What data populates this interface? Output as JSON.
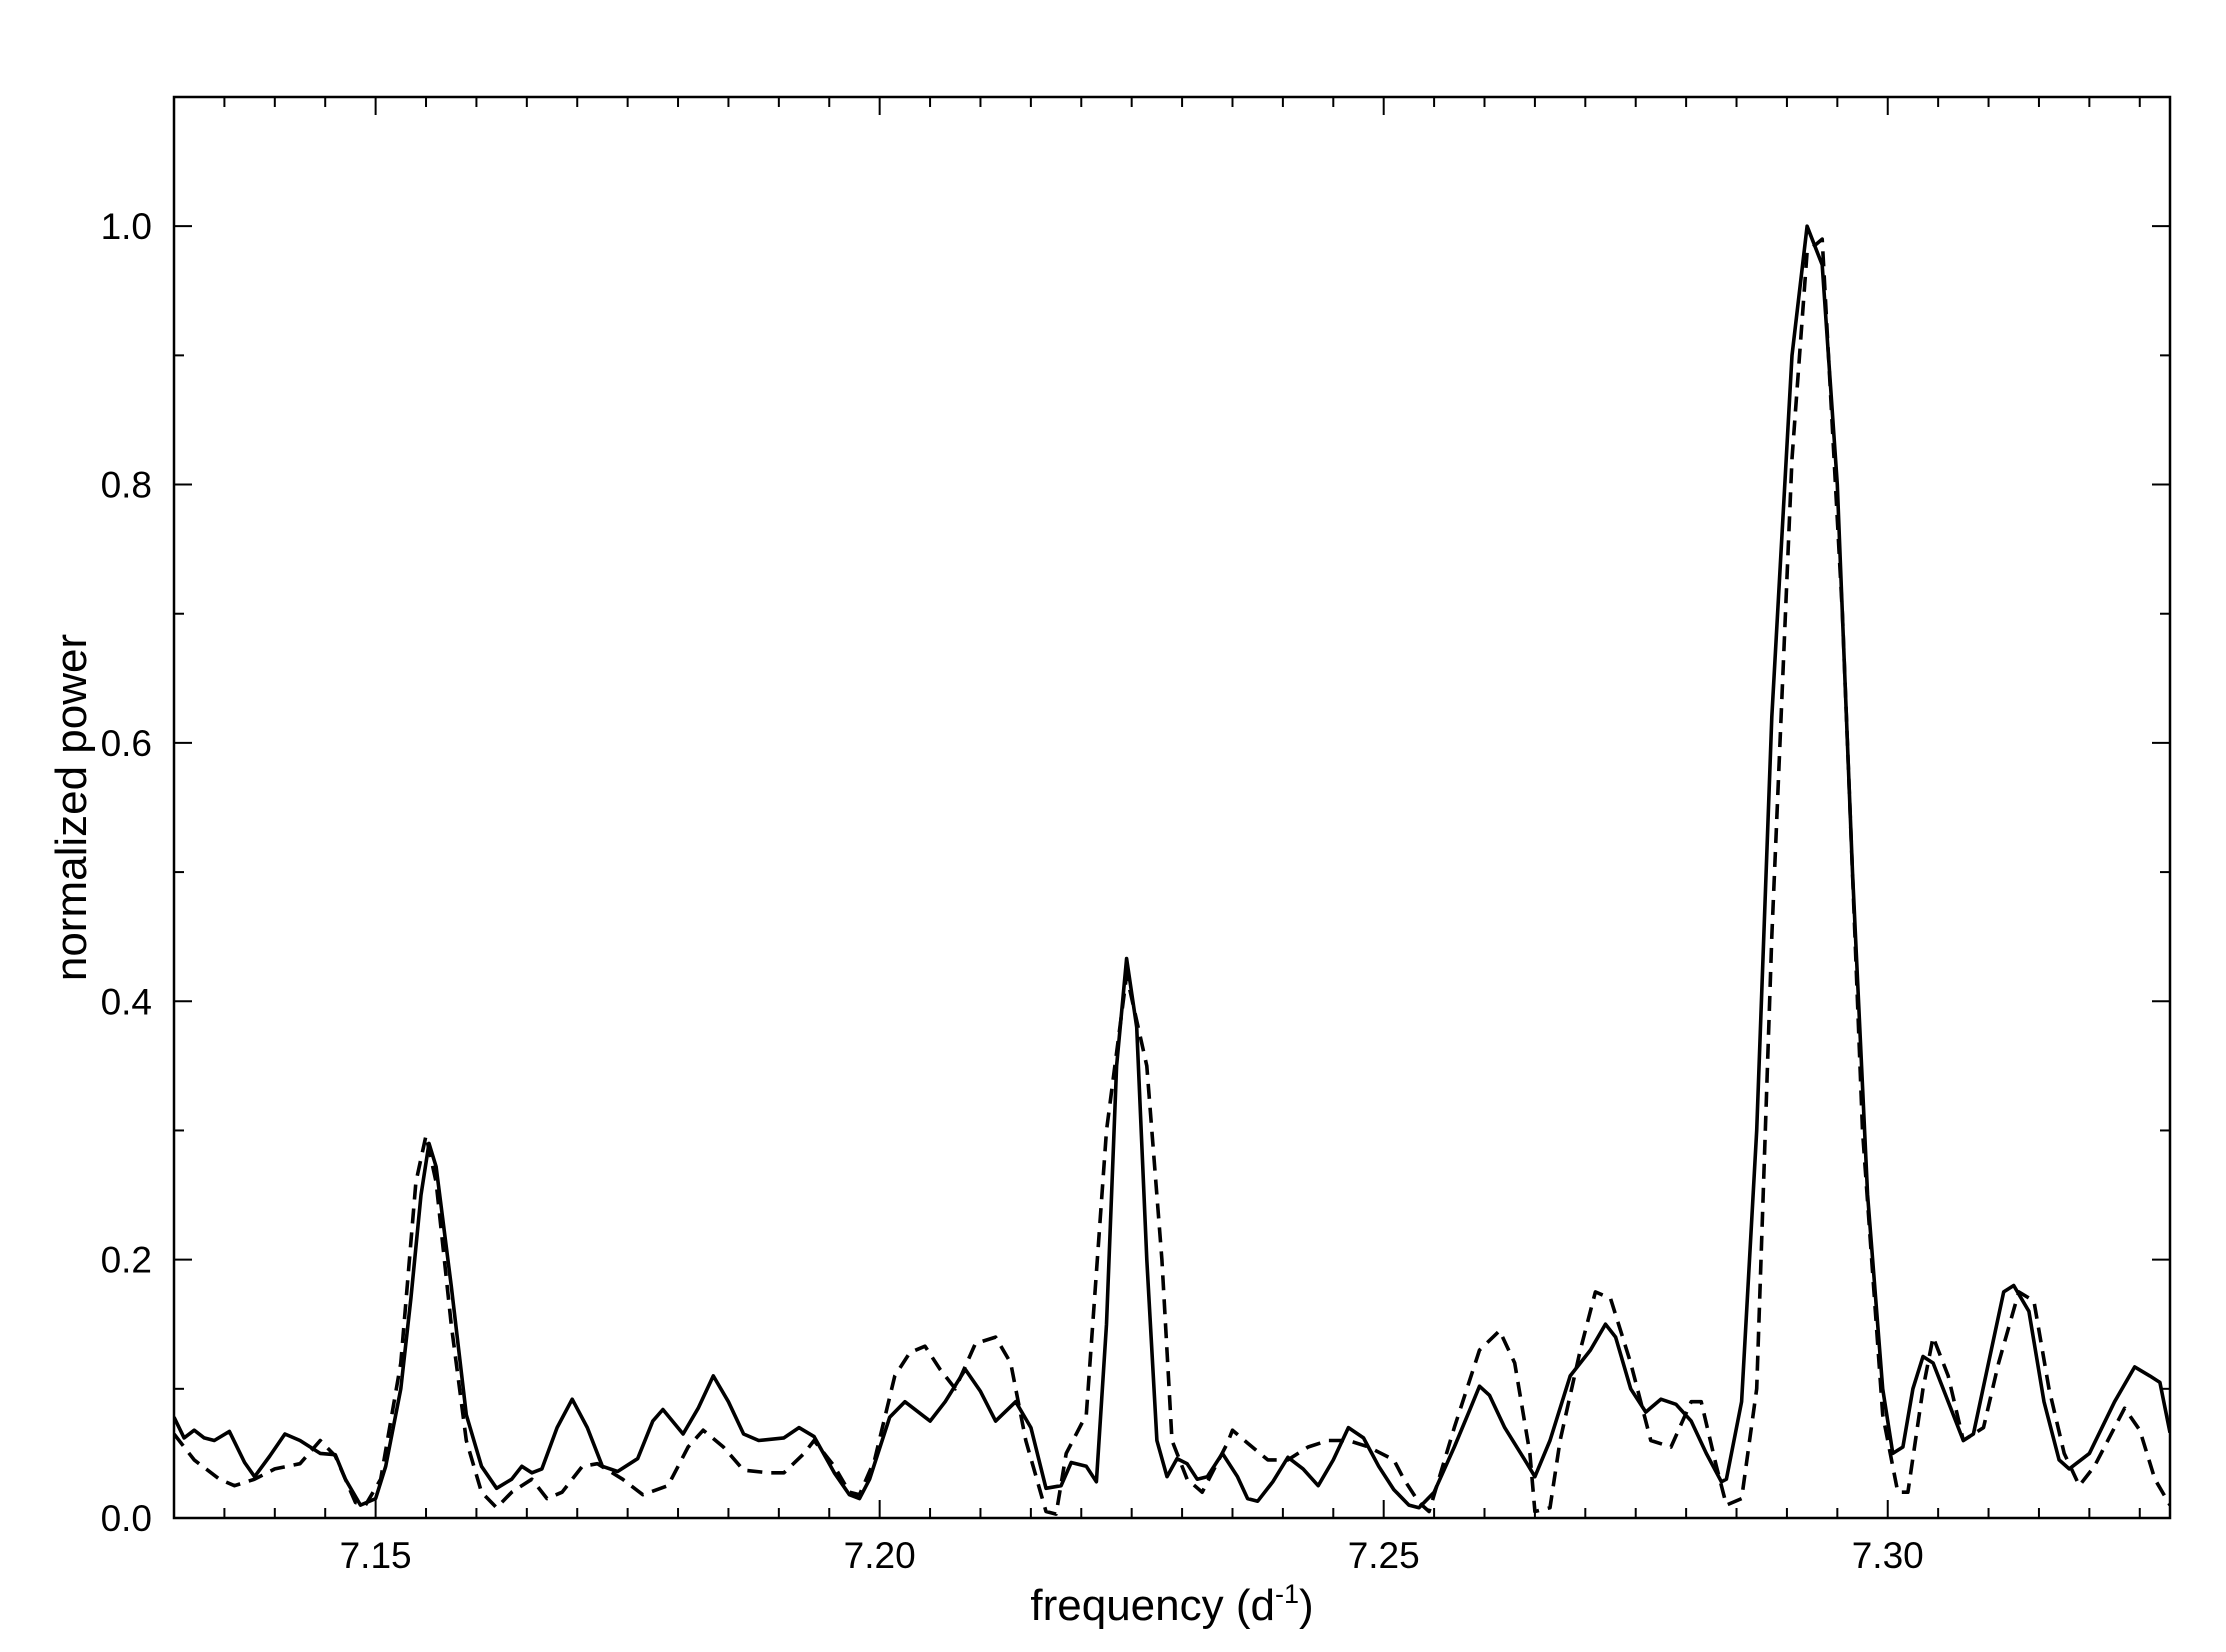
{
  "chart_data": {
    "type": "line",
    "title": "",
    "xlabel": {
      "prefix": "frequency (d",
      "superscript": "-1",
      "suffix": ")"
    },
    "ylabel": "normalized  power",
    "xlim": [
      7.13,
      7.328
    ],
    "ylim": [
      0.0,
      1.1
    ],
    "x_ticks": [
      7.15,
      7.2,
      7.25,
      7.3
    ],
    "x_tick_labels": [
      "7.15",
      "7.20",
      "7.25",
      "7.30"
    ],
    "x_minor_step": 0.005,
    "y_ticks": [
      0.0,
      0.2,
      0.4,
      0.6,
      0.8,
      1.0
    ],
    "y_tick_labels": [
      "0.0",
      "0.2",
      "0.4",
      "0.6",
      "0.8",
      "1.0"
    ],
    "y_minor_step": 0.1,
    "grid": false,
    "legend": "none",
    "series": [
      {
        "style": "solid",
        "color": "#000000",
        "points": [
          [
            7.13,
            0.078
          ],
          [
            7.131,
            0.062
          ],
          [
            7.132,
            0.068
          ],
          [
            7.133,
            0.062
          ],
          [
            7.134,
            0.06
          ],
          [
            7.1355,
            0.067
          ],
          [
            7.137,
            0.043
          ],
          [
            7.138,
            0.032
          ],
          [
            7.1395,
            0.048
          ],
          [
            7.141,
            0.065
          ],
          [
            7.1425,
            0.06
          ],
          [
            7.1445,
            0.05
          ],
          [
            7.146,
            0.049
          ],
          [
            7.147,
            0.03
          ],
          [
            7.1485,
            0.01
          ],
          [
            7.15,
            0.015
          ],
          [
            7.151,
            0.04
          ],
          [
            7.1525,
            0.1
          ],
          [
            7.1535,
            0.17
          ],
          [
            7.1545,
            0.25
          ],
          [
            7.1553,
            0.29
          ],
          [
            7.156,
            0.272
          ],
          [
            7.1575,
            0.18
          ],
          [
            7.159,
            0.08
          ],
          [
            7.1605,
            0.04
          ],
          [
            7.162,
            0.023
          ],
          [
            7.1635,
            0.03
          ],
          [
            7.1645,
            0.04
          ],
          [
            7.1655,
            0.035
          ],
          [
            7.1665,
            0.038
          ],
          [
            7.168,
            0.07
          ],
          [
            7.1695,
            0.092
          ],
          [
            7.171,
            0.07
          ],
          [
            7.1725,
            0.04
          ],
          [
            7.174,
            0.036
          ],
          [
            7.176,
            0.046
          ],
          [
            7.1775,
            0.075
          ],
          [
            7.1785,
            0.084
          ],
          [
            7.1805,
            0.065
          ],
          [
            7.182,
            0.085
          ],
          [
            7.1835,
            0.11
          ],
          [
            7.185,
            0.09
          ],
          [
            7.1865,
            0.065
          ],
          [
            7.188,
            0.06
          ],
          [
            7.1905,
            0.062
          ],
          [
            7.192,
            0.07
          ],
          [
            7.1935,
            0.063
          ],
          [
            7.1955,
            0.035
          ],
          [
            7.197,
            0.018
          ],
          [
            7.198,
            0.015
          ],
          [
            7.199,
            0.03
          ],
          [
            7.201,
            0.078
          ],
          [
            7.2025,
            0.09
          ],
          [
            7.2045,
            0.078
          ],
          [
            7.205,
            0.075
          ],
          [
            7.2065,
            0.09
          ],
          [
            7.2085,
            0.115
          ],
          [
            7.21,
            0.098
          ],
          [
            7.2115,
            0.075
          ],
          [
            7.2135,
            0.09
          ],
          [
            7.215,
            0.07
          ],
          [
            7.2165,
            0.023
          ],
          [
            7.218,
            0.025
          ],
          [
            7.219,
            0.043
          ],
          [
            7.2205,
            0.04
          ],
          [
            7.2215,
            0.028
          ],
          [
            7.2225,
            0.15
          ],
          [
            7.2235,
            0.35
          ],
          [
            7.2245,
            0.433
          ],
          [
            7.2255,
            0.38
          ],
          [
            7.2265,
            0.2
          ],
          [
            7.2275,
            0.06
          ],
          [
            7.2285,
            0.032
          ],
          [
            7.2295,
            0.046
          ],
          [
            7.2305,
            0.042
          ],
          [
            7.2315,
            0.03
          ],
          [
            7.2325,
            0.032
          ],
          [
            7.234,
            0.05
          ],
          [
            7.2355,
            0.032
          ],
          [
            7.2365,
            0.015
          ],
          [
            7.2375,
            0.013
          ],
          [
            7.239,
            0.028
          ],
          [
            7.2405,
            0.047
          ],
          [
            7.242,
            0.038
          ],
          [
            7.2435,
            0.025
          ],
          [
            7.245,
            0.045
          ],
          [
            7.2465,
            0.07
          ],
          [
            7.248,
            0.062
          ],
          [
            7.2495,
            0.04
          ],
          [
            7.251,
            0.022
          ],
          [
            7.2525,
            0.01
          ],
          [
            7.2535,
            0.008
          ],
          [
            7.255,
            0.02
          ],
          [
            7.257,
            0.055
          ],
          [
            7.2585,
            0.083
          ],
          [
            7.2595,
            0.102
          ],
          [
            7.2605,
            0.095
          ],
          [
            7.262,
            0.07
          ],
          [
            7.264,
            0.045
          ],
          [
            7.265,
            0.032
          ],
          [
            7.2665,
            0.06
          ],
          [
            7.2685,
            0.11
          ],
          [
            7.2705,
            0.13
          ],
          [
            7.272,
            0.15
          ],
          [
            7.273,
            0.14
          ],
          [
            7.2745,
            0.1
          ],
          [
            7.276,
            0.082
          ],
          [
            7.2775,
            0.092
          ],
          [
            7.279,
            0.088
          ],
          [
            7.2805,
            0.075
          ],
          [
            7.282,
            0.05
          ],
          [
            7.2835,
            0.028
          ],
          [
            7.284,
            0.03
          ],
          [
            7.2855,
            0.09
          ],
          [
            7.287,
            0.3
          ],
          [
            7.2885,
            0.62
          ],
          [
            7.2905,
            0.9
          ],
          [
            7.292,
            1.0
          ],
          [
            7.2935,
            0.97
          ],
          [
            7.295,
            0.8
          ],
          [
            7.2965,
            0.5
          ],
          [
            7.298,
            0.25
          ],
          [
            7.2995,
            0.1
          ],
          [
            7.3005,
            0.05
          ],
          [
            7.3015,
            0.055
          ],
          [
            7.3025,
            0.1
          ],
          [
            7.3035,
            0.125
          ],
          [
            7.3045,
            0.12
          ],
          [
            7.306,
            0.09
          ],
          [
            7.3075,
            0.06
          ],
          [
            7.3085,
            0.065
          ],
          [
            7.31,
            0.12
          ],
          [
            7.3115,
            0.175
          ],
          [
            7.3125,
            0.18
          ],
          [
            7.314,
            0.16
          ],
          [
            7.3155,
            0.09
          ],
          [
            7.317,
            0.045
          ],
          [
            7.318,
            0.038
          ],
          [
            7.32,
            0.05
          ],
          [
            7.3225,
            0.09
          ],
          [
            7.3245,
            0.117
          ],
          [
            7.326,
            0.11
          ],
          [
            7.327,
            0.105
          ],
          [
            7.328,
            0.066
          ]
        ]
      },
      {
        "style": "dashed",
        "color": "#000000",
        "points": [
          [
            7.13,
            0.065
          ],
          [
            7.132,
            0.045
          ],
          [
            7.1345,
            0.03
          ],
          [
            7.136,
            0.025
          ],
          [
            7.138,
            0.03
          ],
          [
            7.14,
            0.038
          ],
          [
            7.1425,
            0.042
          ],
          [
            7.1445,
            0.06
          ],
          [
            7.146,
            0.048
          ],
          [
            7.148,
            0.012
          ],
          [
            7.149,
            0.01
          ],
          [
            7.1505,
            0.03
          ],
          [
            7.1525,
            0.12
          ],
          [
            7.154,
            0.26
          ],
          [
            7.155,
            0.296
          ],
          [
            7.156,
            0.26
          ],
          [
            7.1575,
            0.15
          ],
          [
            7.159,
            0.06
          ],
          [
            7.1605,
            0.02
          ],
          [
            7.162,
            0.008
          ],
          [
            7.1635,
            0.02
          ],
          [
            7.1655,
            0.03
          ],
          [
            7.167,
            0.015
          ],
          [
            7.1685,
            0.02
          ],
          [
            7.1705,
            0.04
          ],
          [
            7.172,
            0.042
          ],
          [
            7.1745,
            0.03
          ],
          [
            7.1765,
            0.018
          ],
          [
            7.179,
            0.025
          ],
          [
            7.181,
            0.055
          ],
          [
            7.1825,
            0.068
          ],
          [
            7.1845,
            0.055
          ],
          [
            7.1865,
            0.037
          ],
          [
            7.189,
            0.035
          ],
          [
            7.1905,
            0.035
          ],
          [
            7.1925,
            0.05
          ],
          [
            7.1935,
            0.06
          ],
          [
            7.1955,
            0.04
          ],
          [
            7.197,
            0.02
          ],
          [
            7.198,
            0.018
          ],
          [
            7.1995,
            0.045
          ],
          [
            7.2015,
            0.11
          ],
          [
            7.203,
            0.128
          ],
          [
            7.2045,
            0.133
          ],
          [
            7.206,
            0.115
          ],
          [
            7.2075,
            0.1
          ],
          [
            7.2095,
            0.135
          ],
          [
            7.2115,
            0.14
          ],
          [
            7.213,
            0.12
          ],
          [
            7.2145,
            0.06
          ],
          [
            7.2165,
            0.005
          ],
          [
            7.2175,
            0.003
          ],
          [
            7.2185,
            0.05
          ],
          [
            7.2205,
            0.08
          ],
          [
            7.2225,
            0.3
          ],
          [
            7.2245,
            0.42
          ],
          [
            7.2265,
            0.35
          ],
          [
            7.228,
            0.2
          ],
          [
            7.229,
            0.06
          ],
          [
            7.2305,
            0.03
          ],
          [
            7.232,
            0.02
          ],
          [
            7.2345,
            0.058
          ],
          [
            7.235,
            0.068
          ],
          [
            7.2365,
            0.058
          ],
          [
            7.2385,
            0.045
          ],
          [
            7.2405,
            0.045
          ],
          [
            7.2425,
            0.055
          ],
          [
            7.2445,
            0.06
          ],
          [
            7.2465,
            0.06
          ],
          [
            7.2485,
            0.055
          ],
          [
            7.251,
            0.045
          ],
          [
            7.252,
            0.03
          ],
          [
            7.2535,
            0.012
          ],
          [
            7.2545,
            0.005
          ],
          [
            7.257,
            0.07
          ],
          [
            7.2595,
            0.13
          ],
          [
            7.2615,
            0.145
          ],
          [
            7.263,
            0.12
          ],
          [
            7.2645,
            0.05
          ],
          [
            7.265,
            0.005
          ],
          [
            7.2665,
            0.008
          ],
          [
            7.2675,
            0.06
          ],
          [
            7.2695,
            0.13
          ],
          [
            7.271,
            0.175
          ],
          [
            7.2725,
            0.17
          ],
          [
            7.2745,
            0.12
          ],
          [
            7.2765,
            0.06
          ],
          [
            7.2785,
            0.055
          ],
          [
            7.2805,
            0.09
          ],
          [
            7.2815,
            0.09
          ],
          [
            7.283,
            0.04
          ],
          [
            7.284,
            0.01
          ],
          [
            7.2855,
            0.015
          ],
          [
            7.287,
            0.1
          ],
          [
            7.2885,
            0.45
          ],
          [
            7.2905,
            0.82
          ],
          [
            7.292,
            0.98
          ],
          [
            7.2935,
            0.99
          ],
          [
            7.2955,
            0.7
          ],
          [
            7.2975,
            0.3
          ],
          [
            7.2995,
            0.08
          ],
          [
            7.301,
            0.02
          ],
          [
            7.302,
            0.02
          ],
          [
            7.3035,
            0.1
          ],
          [
            7.3045,
            0.14
          ],
          [
            7.306,
            0.11
          ],
          [
            7.3075,
            0.06
          ],
          [
            7.3095,
            0.07
          ],
          [
            7.311,
            0.12
          ],
          [
            7.313,
            0.175
          ],
          [
            7.3145,
            0.168
          ],
          [
            7.316,
            0.1
          ],
          [
            7.3175,
            0.05
          ],
          [
            7.319,
            0.025
          ],
          [
            7.3205,
            0.04
          ],
          [
            7.3235,
            0.085
          ],
          [
            7.325,
            0.068
          ],
          [
            7.3265,
            0.03
          ],
          [
            7.328,
            0.01
          ]
        ]
      }
    ]
  }
}
